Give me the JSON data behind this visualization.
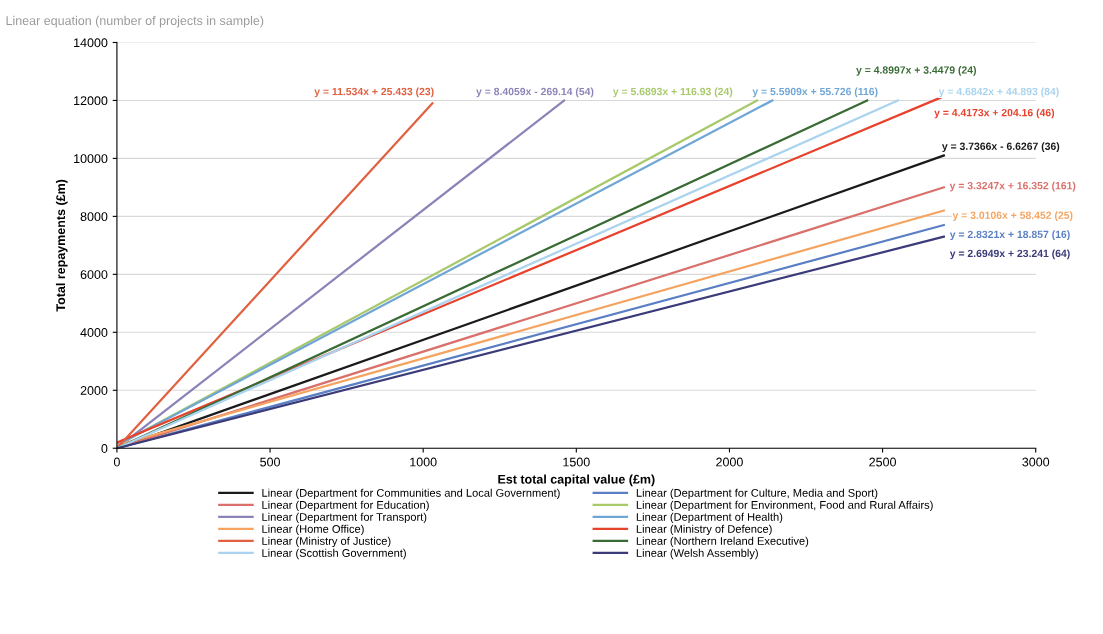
{
  "chart_data": {
    "type": "line",
    "title": "Linear equation (number of projects in sample)",
    "xlabel": "Est total capital value (£m)",
    "ylabel": "Total repayments (£m)",
    "xlim": [
      0,
      3000
    ],
    "xticks": [
      0,
      500,
      1000,
      1500,
      2000,
      2500,
      3000
    ],
    "ylim": [
      0,
      14000
    ],
    "yticks": [
      0,
      2000,
      4000,
      6000,
      8000,
      10000,
      12000,
      14000
    ],
    "grid": "y",
    "legend": "bottom",
    "marker": "none",
    "line_style": "solid",
    "series": [
      {
        "name": "Linear (Department for Communities and Local Government)",
        "color": "#1a1a1a",
        "x": [
          0,
          2700
        ],
        "values": [
          0,
          10100
        ]
      },
      {
        "name": "Linear (Department for Culture, Media and Sport)",
        "color": "#5b7fc4",
        "x": [
          0,
          2700
        ],
        "values": [
          0,
          7700
        ]
      },
      {
        "name": "Linear (Department for Education)",
        "color": "#d9706b",
        "x": [
          0,
          2700
        ],
        "values": [
          0,
          9000
        ]
      },
      {
        "name": "Linear (Department for Environment, Food and Rural Affairs)",
        "color": "#a8c96a",
        "x": [
          0,
          2090
        ],
        "values": [
          100,
          12000
        ]
      },
      {
        "name": "Linear (Department for Transport)",
        "color": "#8c84b8",
        "x": [
          0,
          1460
        ],
        "values": [
          0,
          12000
        ]
      },
      {
        "name": "Linear (Department of Health)",
        "color": "#6fa6d6",
        "x": [
          0,
          2140
        ],
        "values": [
          100,
          12000
        ]
      },
      {
        "name": "Linear (Home Office)",
        "color": "#f4a460",
        "x": [
          0,
          2700
        ],
        "values": [
          100,
          8200
        ]
      },
      {
        "name": "Linear (Ministry of Defence)",
        "color": "#e8412c",
        "x": [
          0,
          2690
        ],
        "values": [
          200,
          12100
        ]
      },
      {
        "name": "Linear (Ministry of Justice)",
        "color": "#e06040",
        "x": [
          0,
          1030
        ],
        "values": [
          0,
          11900
        ]
      },
      {
        "name": "Linear (Northern Ireland Executive)",
        "color": "#3a6b35",
        "x": [
          0,
          2450
        ],
        "values": [
          0,
          12000
        ]
      },
      {
        "name": "Linear (Scottish Government)",
        "color": "#a9d3ee",
        "x": [
          0,
          2550
        ],
        "values": [
          0,
          12000
        ]
      },
      {
        "name": "Linear (Welsh Assembly)",
        "color": "#3b3b7a",
        "x": [
          0,
          2700
        ],
        "values": [
          0,
          7300
        ]
      }
    ],
    "annotations": [
      "y = 3.7366x - 6.6267 (36)",
      "y = 2.8321x + 18.857 (16)",
      "y = 3.3247x + 16.352 (161)",
      "y = 5.6893x + 116.93 (24)",
      "y = 8.4059x - 269.14 (54)",
      "y = 5.5909x + 55.726 (116)",
      "y = 3.0106x + 58.452 (25)",
      "y = 4.4173x + 204.16 (46)",
      "y = 11.534x + 25.433 (23)",
      "y = 4.8997x + 3.4479 (24)",
      "y = 4.6842x + 44.893 (84)",
      "y = 2.6949x + 23.241 (64)"
    ]
  }
}
